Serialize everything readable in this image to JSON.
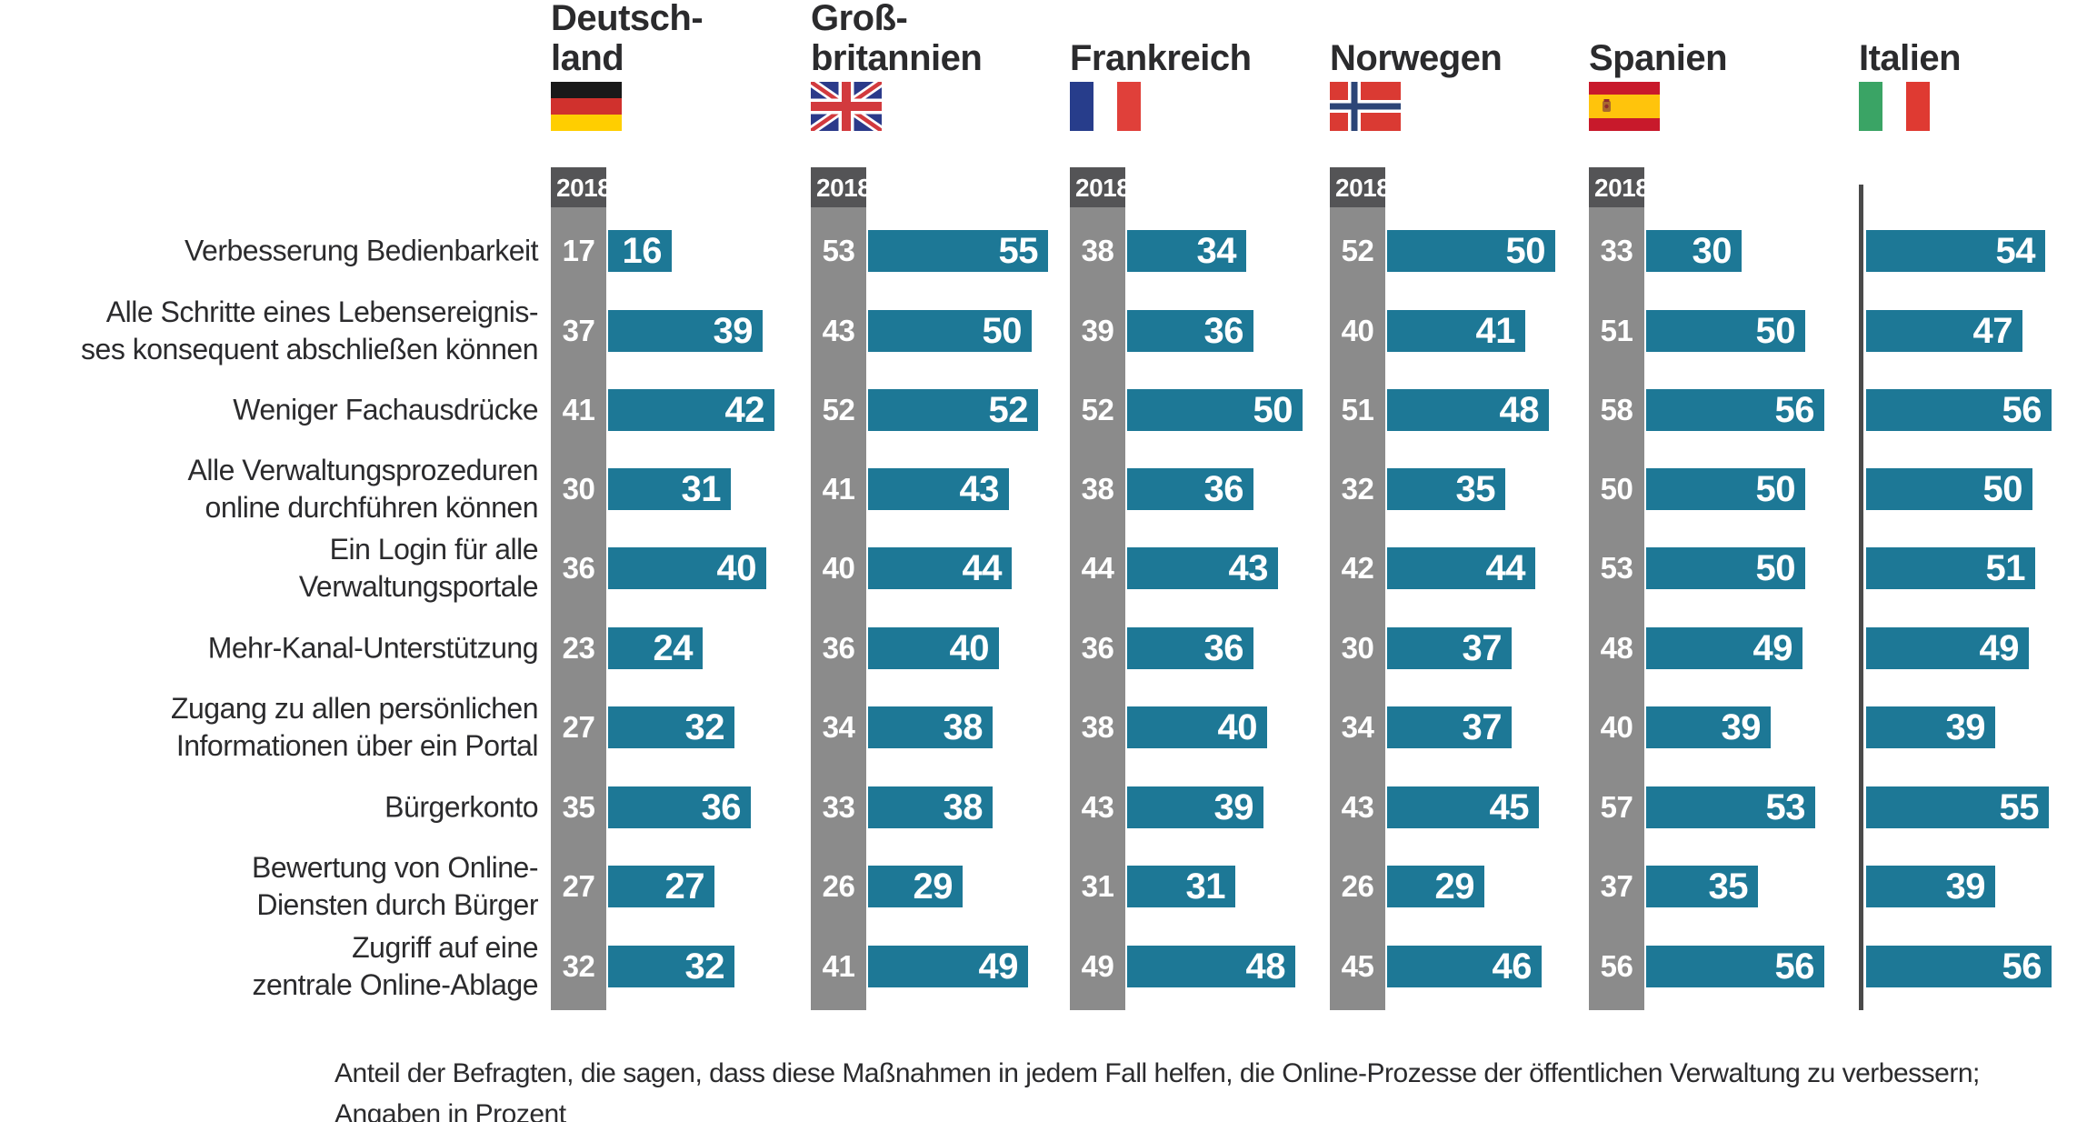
{
  "chart": {
    "caption_line1": "Anteil der Befragten, die sagen, dass diese Maßnahmen in jedem Fall helfen, die Online-Prozesse der öffentlichen Verwaltung zu verbessern;",
    "caption_line2": "Angaben in Prozent"
  },
  "colors": {
    "bar_teal": "#1d7896",
    "column_gray": "#8b8b8b",
    "column_header_gray": "#545456",
    "divider_gray": "#4a4a4a",
    "text_dark": "#2b2b2d"
  },
  "chart_data": {
    "type": "bar",
    "orientation": "horizontal",
    "unit": "percent",
    "title": "",
    "year_column_label": "2018",
    "legend": "gray column = 2018 value, teal bar = current value",
    "categories": [
      "Verbesserung Bedienbarkeit",
      "Alle Schritte eines Lebensereignis-\nses konsequent abschließen können",
      "Weniger Fachausdrücke",
      "Alle Verwaltungsprozeduren\nonline durchführen können",
      "Ein Login für alle\nVerwaltungsportale",
      "Mehr-Kanal-Unterstützung",
      "Zugang zu allen persönlichen\nInformationen über ein Portal",
      "Bürgerkonto",
      "Bewertung von Online-\nDiensten durch Bürger",
      "Zugriff auf eine\nzentrale Online-Ablage"
    ],
    "series": [
      {
        "name": "Deutschland",
        "display_name": "Deutsch-\nland",
        "flag": "germany",
        "y2018": [
          17,
          37,
          41,
          30,
          36,
          23,
          27,
          35,
          27,
          32
        ],
        "values": [
          16,
          39,
          42,
          31,
          40,
          24,
          32,
          36,
          27,
          32
        ]
      },
      {
        "name": "Großbritannien",
        "display_name": "Groß-\nbritannien",
        "flag": "uk",
        "y2018": [
          53,
          43,
          52,
          41,
          40,
          36,
          34,
          33,
          26,
          41
        ],
        "values": [
          55,
          50,
          52,
          43,
          44,
          40,
          38,
          38,
          29,
          49
        ]
      },
      {
        "name": "Frankreich",
        "display_name": "Frankreich",
        "flag": "france",
        "y2018": [
          38,
          39,
          52,
          38,
          44,
          36,
          38,
          43,
          31,
          49
        ],
        "values": [
          34,
          36,
          50,
          36,
          43,
          36,
          40,
          39,
          31,
          48
        ]
      },
      {
        "name": "Norwegen",
        "display_name": "Norwegen",
        "flag": "norway",
        "y2018": [
          52,
          40,
          51,
          32,
          42,
          30,
          34,
          43,
          26,
          45
        ],
        "values": [
          50,
          41,
          48,
          35,
          44,
          37,
          37,
          45,
          29,
          46
        ]
      },
      {
        "name": "Spanien",
        "display_name": "Spanien",
        "flag": "spain",
        "y2018": [
          33,
          51,
          58,
          50,
          53,
          48,
          40,
          57,
          37,
          56
        ],
        "values": [
          30,
          50,
          56,
          50,
          50,
          49,
          39,
          53,
          35,
          56
        ]
      },
      {
        "name": "Italien",
        "display_name": "Italien",
        "flag": "italy",
        "y2018": null,
        "values": [
          54,
          47,
          56,
          50,
          51,
          49,
          39,
          55,
          39,
          56
        ]
      }
    ]
  }
}
